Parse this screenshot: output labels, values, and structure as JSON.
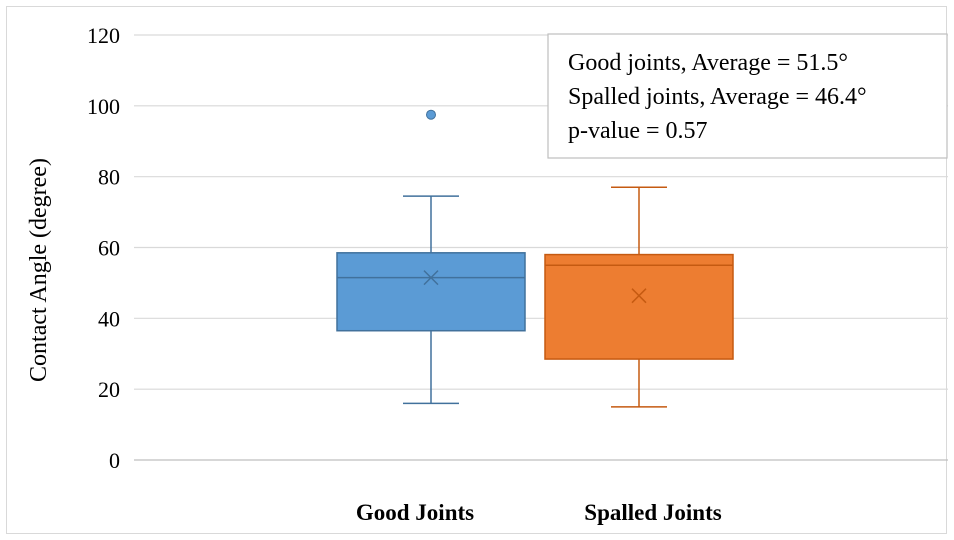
{
  "chart_data": {
    "type": "box",
    "ylabel": "Contact Angle (degree)",
    "ylim": [
      0,
      120
    ],
    "yticks": [
      0,
      20,
      40,
      60,
      80,
      100,
      120
    ],
    "grid": true,
    "categories": [
      "Good Joints",
      "Spalled Joints"
    ],
    "series": [
      {
        "category": "Good Joints",
        "color": "#5b9bd5",
        "stroke": "#41719c",
        "min": 16,
        "q1": 36.5,
        "median": 51.5,
        "q3": 58.5,
        "max": 74.5,
        "mean": 51.5,
        "outliers": [
          97.5
        ]
      },
      {
        "category": "Spalled Joints",
        "color": "#ed7d31",
        "stroke": "#c55a11",
        "min": 15,
        "q1": 28.5,
        "median": 55,
        "q3": 58,
        "max": 77,
        "mean": 46.4,
        "outliers": []
      }
    ],
    "annotation": {
      "lines": [
        "Good joints, Average = 51.5°",
        "Spalled joints, Average = 46.4°",
        "p-value = 0.57"
      ],
      "placement": "top-right"
    }
  }
}
